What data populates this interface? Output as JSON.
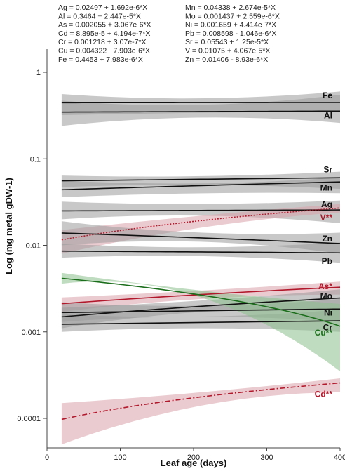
{
  "chart_data": {
    "type": "line",
    "title": "",
    "xlabel": "Leaf age (days)",
    "ylabel": "Log (mg metal gDW-1)",
    "x_scale": "linear",
    "y_scale": "log",
    "xlim": [
      0,
      400
    ],
    "ylim": [
      5e-05,
      2
    ],
    "x_ticks": [
      0,
      100,
      200,
      300,
      400
    ],
    "x_tick_labels": [
      "0",
      "100",
      "200",
      "300",
      "400"
    ],
    "y_ticks": [
      0.0001,
      0.001,
      0.01,
      0.1,
      1
    ],
    "y_tick_labels": [
      "0.0001",
      "0.001",
      "0.01",
      "0.1",
      "1"
    ],
    "grid": false,
    "legend": "none",
    "colors": {
      "black_line": "#111111",
      "black_band": "#9a9a9a",
      "red_line": "#b2182b",
      "red_band": "#d9a0aa",
      "green_line": "#1b6e1b",
      "green_band": "#8cc08c"
    },
    "equations": [
      "Ag = 0.02497 + 1.692e-6*X",
      "Al = 0.3464 + 2.447e-5*X",
      "As = 0.002055 + 3.067e-6*X",
      "Cd = 8.895e-5 + 4.194e-7*X",
      "Cr = 0.001218 + 3.07e-7*X",
      "Cu = 0.004322 - 7.903e-6*X",
      "Fe = 0.4453 + 7.983e-6*X",
      "Mn = 0.04338 + 2.674e-5*X",
      "Mo = 0.001437 + 2.559e-6*X",
      "Ni = 0.001659 + 4.414e-7*X",
      "Pb = 0.008598 - 1.046e-6*X",
      "Sr = 0.05543 + 1.25e-5*X",
      "V = 0.01075 + 4.067e-5*X",
      "Zn = 0.01406 - 8.93e-6*X"
    ],
    "x_range": [
      20,
      400
    ],
    "series": [
      {
        "name": "Fe",
        "label": "Fe",
        "color": "#111111",
        "band_color": "#9a9a9a",
        "dash": "solid",
        "intercept": 0.4453,
        "slope": 7.983e-06,
        "band_start": [
          0.32,
          0.56
        ],
        "band_mid": [
          0.34,
          0.5
        ],
        "band_end": [
          0.35,
          0.6
        ]
      },
      {
        "name": "Al",
        "label": "Al",
        "color": "#111111",
        "band_color": "#9a9a9a",
        "dash": "solid",
        "intercept": 0.3464,
        "slope": 2.447e-05,
        "band_start": [
          0.24,
          0.47
        ],
        "band_mid": [
          0.3,
          0.42
        ],
        "band_end": [
          0.26,
          0.55
        ]
      },
      {
        "name": "Sr",
        "label": "Sr",
        "color": "#111111",
        "band_color": "#9a9a9a",
        "dash": "solid",
        "intercept": 0.05543,
        "slope": 1.25e-05,
        "band_start": [
          0.047,
          0.064
        ],
        "band_mid": [
          0.05,
          0.063
        ],
        "band_end": [
          0.045,
          0.071
        ]
      },
      {
        "name": "Mn",
        "label": "Mn",
        "color": "#111111",
        "band_color": "#9a9a9a",
        "dash": "solid",
        "intercept": 0.04338,
        "slope": 2.674e-05,
        "band_start": [
          0.036,
          0.056
        ],
        "band_mid": [
          0.04,
          0.052
        ],
        "band_end": [
          0.04,
          0.061
        ]
      },
      {
        "name": "Ag",
        "label": "Ag",
        "color": "#111111",
        "band_color": "#9a9a9a",
        "dash": "solid",
        "intercept": 0.02497,
        "slope": 1.692e-06,
        "band_start": [
          0.02,
          0.032
        ],
        "band_mid": [
          0.022,
          0.03
        ],
        "band_end": [
          0.018,
          0.033
        ]
      },
      {
        "name": "V",
        "label": "V**",
        "color": "#b2182b",
        "band_color": "#d9a0aa",
        "dash": "dotted",
        "intercept": 0.01075,
        "slope": 4.067e-05,
        "band_start": [
          0.008,
          0.015
        ],
        "band_mid": [
          0.016,
          0.022
        ],
        "band_end": [
          0.024,
          0.03
        ]
      },
      {
        "name": "Zn",
        "label": "Zn",
        "color": "#111111",
        "band_color": "#9a9a9a",
        "dash": "solid",
        "intercept": 0.01406,
        "slope": -8.93e-06,
        "band_start": [
          0.01,
          0.019
        ],
        "band_mid": [
          0.011,
          0.014
        ],
        "band_end": [
          0.008,
          0.014
        ]
      },
      {
        "name": "Pb",
        "label": "Pb",
        "color": "#111111",
        "band_color": "#9a9a9a",
        "dash": "solid",
        "intercept": 0.008598,
        "slope": -1.046e-06,
        "band_start": [
          0.0072,
          0.0105
        ],
        "band_mid": [
          0.0075,
          0.0095
        ],
        "band_end": [
          0.0063,
          0.0108
        ]
      },
      {
        "name": "As",
        "label": "As*",
        "color": "#b2182b",
        "band_color": "#d9a0aa",
        "dash": "solid",
        "intercept": 0.002055,
        "slope": 3.067e-06,
        "band_start": [
          0.0017,
          0.0025
        ],
        "band_mid": [
          0.0024,
          0.003
        ],
        "band_end": [
          0.0027,
          0.0038
        ]
      },
      {
        "name": "Mo",
        "label": "Mo",
        "color": "#111111",
        "band_color": "#9a9a9a",
        "dash": "solid",
        "intercept": 0.001437,
        "slope": 2.559e-06,
        "band_start": [
          0.0011,
          0.0019
        ],
        "band_mid": [
          0.0017,
          0.0023
        ],
        "band_end": [
          0.0018,
          0.0031
        ]
      },
      {
        "name": "Ni",
        "label": "Ni",
        "color": "#111111",
        "band_color": "#9a9a9a",
        "dash": "solid",
        "intercept": 0.001659,
        "slope": 4.414e-07,
        "band_start": [
          0.0013,
          0.0022
        ],
        "band_mid": [
          0.0015,
          0.002
        ],
        "band_end": [
          0.0013,
          0.0024
        ]
      },
      {
        "name": "Cr",
        "label": "Cr",
        "color": "#111111",
        "band_color": "#9a9a9a",
        "dash": "solid",
        "intercept": 0.001218,
        "slope": 3.07e-07,
        "band_start": [
          0.001,
          0.0016
        ],
        "band_mid": [
          0.0011,
          0.0015
        ],
        "band_end": [
          0.001,
          0.0018
        ]
      },
      {
        "name": "Cu",
        "label": "Cu**",
        "color": "#1b6e1b",
        "band_color": "#8cc08c",
        "dash": "solid",
        "intercept": 0.004322,
        "slope": -7.903e-06,
        "band_start": [
          0.0036,
          0.0048
        ],
        "band_mid": [
          0.0025,
          0.003
        ],
        "band_end": [
          0.00035,
          0.0021
        ]
      },
      {
        "name": "Cd",
        "label": "Cd**",
        "color": "#b2182b",
        "band_color": "#d9a0aa",
        "dash": "dashdot",
        "intercept": 8.895e-05,
        "slope": 4.194e-07,
        "band_start": [
          5e-05,
          0.00015
        ],
        "band_mid": [
          0.00014,
          0.0002
        ],
        "band_end": [
          0.0002,
          0.00029
        ]
      }
    ]
  }
}
